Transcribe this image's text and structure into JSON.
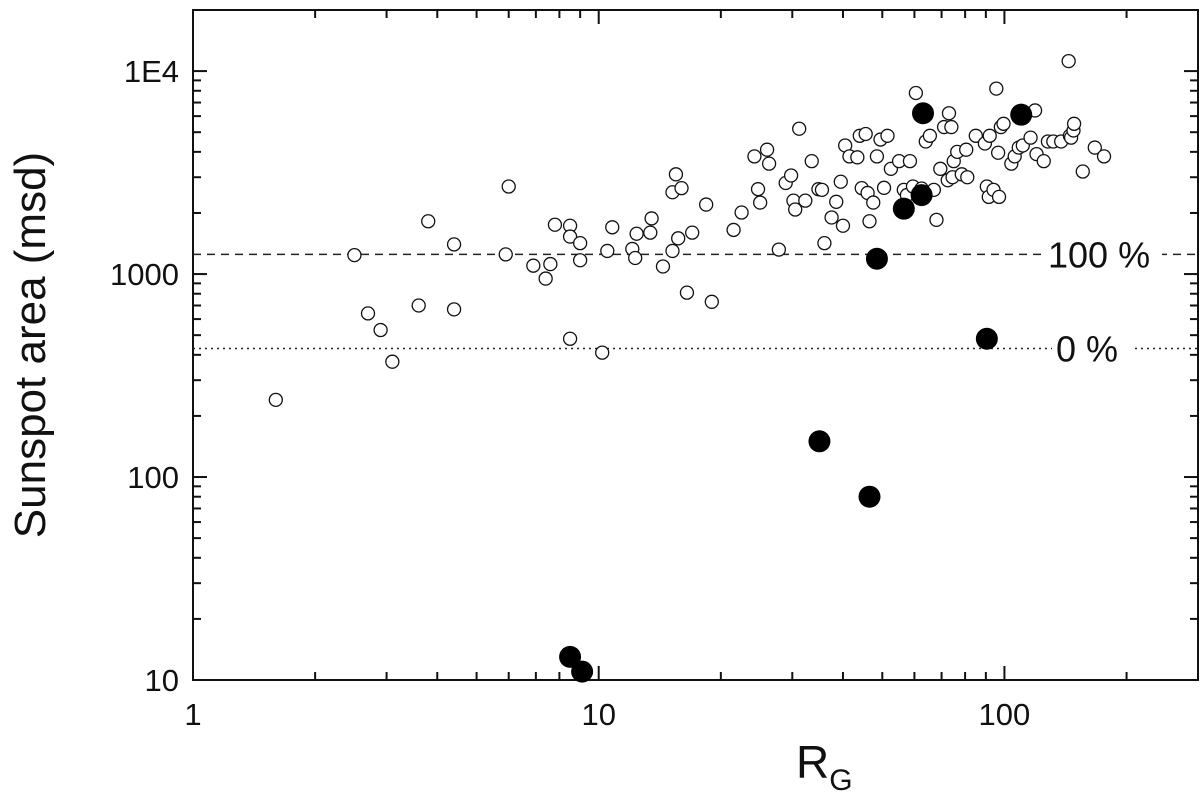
{
  "chart_data": {
    "type": "scatter",
    "title": "",
    "xlabel": "R",
    "xlabel_sub": "G",
    "ylabel": "Sunspot area (msd)",
    "xscale": "log",
    "yscale": "log",
    "xlim": [
      1,
      300
    ],
    "ylim": [
      10,
      20000
    ],
    "grid": false,
    "legend": "none",
    "x_ticks": [
      {
        "value": 1,
        "label": "1"
      },
      {
        "value": 10,
        "label": "10"
      },
      {
        "value": 100,
        "label": "100"
      }
    ],
    "y_ticks": [
      {
        "value": 10,
        "label": "10"
      },
      {
        "value": 100,
        "label": "100"
      },
      {
        "value": 1000,
        "label": "1000"
      },
      {
        "value": 10000,
        "label": "1E4"
      }
    ],
    "reference_lines": [
      {
        "y": 1250,
        "style": "dashed",
        "label": "100 %"
      },
      {
        "y": 430,
        "style": "dotted",
        "label": "0 %"
      }
    ],
    "series": [
      {
        "marker": "open-circle",
        "points": [
          [
            1.6,
            240
          ],
          [
            2.5,
            1240
          ],
          [
            2.7,
            640
          ],
          [
            2.9,
            530
          ],
          [
            3.1,
            370
          ],
          [
            3.6,
            700
          ],
          [
            3.8,
            1820
          ],
          [
            4.4,
            1400
          ],
          [
            4.4,
            670
          ],
          [
            5.9,
            1250
          ],
          [
            6.0,
            2700
          ],
          [
            6.9,
            1100
          ],
          [
            7.4,
            950
          ],
          [
            7.6,
            1120
          ],
          [
            7.8,
            1750
          ],
          [
            8.5,
            1730
          ],
          [
            8.5,
            1530
          ],
          [
            8.5,
            480
          ],
          [
            9.0,
            1420
          ],
          [
            9.0,
            1170
          ],
          [
            10.2,
            410
          ],
          [
            10.5,
            1300
          ],
          [
            10.8,
            1700
          ],
          [
            12.1,
            1330
          ],
          [
            12.3,
            1200
          ],
          [
            12.4,
            1580
          ],
          [
            13.4,
            1600
          ],
          [
            13.5,
            1880
          ],
          [
            14.4,
            1090
          ],
          [
            15.2,
            1300
          ],
          [
            15.2,
            2530
          ],
          [
            15.5,
            3100
          ],
          [
            15.7,
            1500
          ],
          [
            16.0,
            2650
          ],
          [
            16.5,
            810
          ],
          [
            17.0,
            1600
          ],
          [
            18.4,
            2200
          ],
          [
            19.0,
            730
          ],
          [
            21.5,
            1650
          ],
          [
            22.5,
            2010
          ],
          [
            24.2,
            3800
          ],
          [
            24.7,
            2620
          ],
          [
            25.0,
            2250
          ],
          [
            26.0,
            4100
          ],
          [
            26.3,
            3500
          ],
          [
            27.8,
            1320
          ],
          [
            28.9,
            2810
          ],
          [
            29.8,
            3060
          ],
          [
            30.2,
            2300
          ],
          [
            30.5,
            2080
          ],
          [
            31.2,
            5200
          ],
          [
            32.3,
            2300
          ],
          [
            33.5,
            3600
          ],
          [
            34.8,
            2620
          ],
          [
            35.5,
            2600
          ],
          [
            36.0,
            1420
          ],
          [
            37.5,
            1900
          ],
          [
            38.5,
            2270
          ],
          [
            39.5,
            2850
          ],
          [
            40.0,
            1730
          ],
          [
            40.5,
            4300
          ],
          [
            41.5,
            3800
          ],
          [
            43.4,
            3760
          ],
          [
            44.0,
            4800
          ],
          [
            44.5,
            2650
          ],
          [
            45.5,
            4900
          ],
          [
            46.0,
            2510
          ],
          [
            46.5,
            1820
          ],
          [
            47.5,
            2250
          ],
          [
            48.5,
            3800
          ],
          [
            49.5,
            4600
          ],
          [
            50.5,
            2660
          ],
          [
            51.5,
            4800
          ],
          [
            52.5,
            3300
          ],
          [
            55.0,
            3600
          ],
          [
            56.5,
            2600
          ],
          [
            57.5,
            2450
          ],
          [
            58.5,
            3600
          ],
          [
            59.5,
            2700
          ],
          [
            60.5,
            7800
          ],
          [
            62.5,
            2640
          ],
          [
            64.0,
            4500
          ],
          [
            65.5,
            4800
          ],
          [
            67.0,
            2600
          ],
          [
            68.0,
            1850
          ],
          [
            69.5,
            3300
          ],
          [
            71.0,
            5300
          ],
          [
            72.5,
            2900
          ],
          [
            73.0,
            6200
          ],
          [
            74.0,
            5300
          ],
          [
            74.5,
            3000
          ],
          [
            75.0,
            3600
          ],
          [
            76.5,
            4000
          ],
          [
            78.5,
            3100
          ],
          [
            80.5,
            4100
          ],
          [
            81.0,
            3000
          ],
          [
            85.0,
            4800
          ],
          [
            89.5,
            4400
          ],
          [
            90.5,
            2700
          ],
          [
            91.5,
            2400
          ],
          [
            92.0,
            4800
          ],
          [
            94.0,
            2600
          ],
          [
            95.5,
            8200
          ],
          [
            96.5,
            3960
          ],
          [
            97.0,
            2400
          ],
          [
            98.0,
            5300
          ],
          [
            99.5,
            5500
          ],
          [
            104.0,
            3500
          ],
          [
            106.0,
            3800
          ],
          [
            108.5,
            4200
          ],
          [
            111.0,
            4300
          ],
          [
            116.0,
            4700
          ],
          [
            119.0,
            6400
          ],
          [
            120.0,
            3900
          ],
          [
            125.0,
            3600
          ],
          [
            128.0,
            4500
          ],
          [
            132.0,
            4500
          ],
          [
            138.0,
            4500
          ],
          [
            144.0,
            11200
          ],
          [
            145.0,
            4800
          ],
          [
            146.0,
            4700
          ],
          [
            148.0,
            5100
          ],
          [
            148.5,
            5500
          ],
          [
            156.0,
            3200
          ],
          [
            167.0,
            4200
          ],
          [
            176.0,
            3800
          ]
        ]
      },
      {
        "marker": "filled-circle",
        "points": [
          [
            8.5,
            13
          ],
          [
            9.1,
            11
          ],
          [
            35.0,
            150
          ],
          [
            46.5,
            80
          ],
          [
            48.5,
            1190
          ],
          [
            56.5,
            2100
          ],
          [
            62.5,
            2450
          ],
          [
            63.0,
            6200
          ],
          [
            90.5,
            480
          ],
          [
            110.0,
            6100
          ]
        ]
      }
    ]
  }
}
